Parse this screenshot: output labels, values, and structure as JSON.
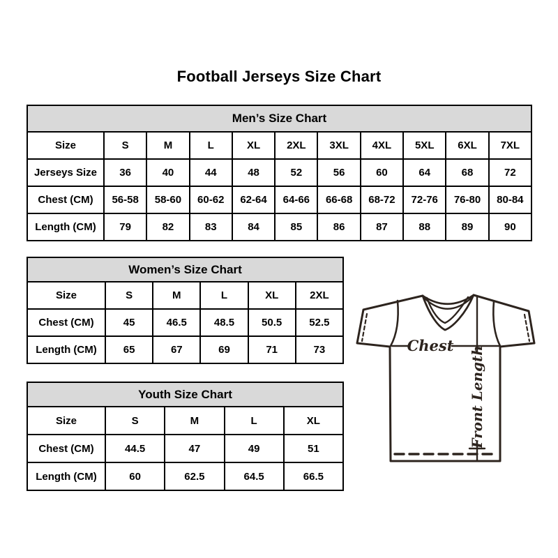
{
  "title": "Football Jerseys Size Chart",
  "colors": {
    "header_bg": "#d9d9d9",
    "border": "#000000",
    "text": "#000000",
    "jersey_stroke": "#2d241e"
  },
  "tables": {
    "men": {
      "header": "Men’s Size Chart",
      "rows": [
        [
          "Size",
          "S",
          "M",
          "L",
          "XL",
          "2XL",
          "3XL",
          "4XL",
          "5XL",
          "6XL",
          "7XL"
        ],
        [
          "Jerseys Size",
          "36",
          "40",
          "44",
          "48",
          "52",
          "56",
          "60",
          "64",
          "68",
          "72"
        ],
        [
          "Chest (CM)",
          "56-58",
          "58-60",
          "60-62",
          "62-64",
          "64-66",
          "66-68",
          "68-72",
          "72-76",
          "76-80",
          "80-84"
        ],
        [
          "Length (CM)",
          "79",
          "82",
          "83",
          "84",
          "85",
          "86",
          "87",
          "88",
          "89",
          "90"
        ]
      ]
    },
    "women": {
      "header": "Women’s Size Chart",
      "rows": [
        [
          "Size",
          "S",
          "M",
          "L",
          "XL",
          "2XL"
        ],
        [
          "Chest (CM)",
          "45",
          "46.5",
          "48.5",
          "50.5",
          "52.5"
        ],
        [
          "Length (CM)",
          "65",
          "67",
          "69",
          "71",
          "73"
        ]
      ]
    },
    "youth": {
      "header": "Youth Size Chart",
      "rows": [
        [
          "Size",
          "S",
          "M",
          "L",
          "XL"
        ],
        [
          "Chest (CM)",
          "44.5",
          "47",
          "49",
          "51"
        ],
        [
          "Length (CM)",
          "60",
          "62.5",
          "64.5",
          "66.5"
        ]
      ]
    }
  },
  "jersey": {
    "chest_label": "Chest",
    "front_length_label": "Front Length"
  }
}
